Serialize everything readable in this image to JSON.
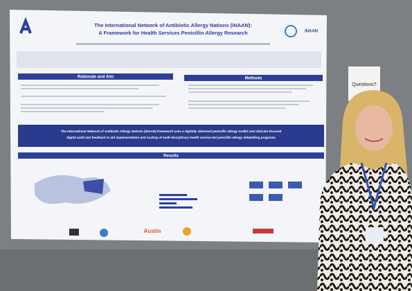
{
  "poster": {
    "title_line1": "The International Network of Antibiotic Allergy Nations (iNAAN):",
    "title_line2": "A Framework for Health Services Penicillin Allergy Research",
    "logo": "iNAAN",
    "sections": [
      "Rationale and Aim",
      "Methods",
      "Results"
    ],
    "banner_line1": "The International Network of Antibiotic Allergy Nations (iNAAN) framework uses a digitally delivered penicillin allergy toolkit and clinician-focused",
    "banner_line2": "digital audit and feedback to aid implementation and scaling of multi-disciplinary health service-led penicillin allergy delabelling programs",
    "sponsor": "Austin"
  },
  "sign": {
    "text": "Questions?"
  }
}
